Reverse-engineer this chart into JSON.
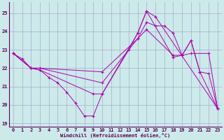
{
  "bg_color": "#cceaea",
  "grid_color": "#aaaacc",
  "line_color": "#aa00aa",
  "xlim": [
    -0.5,
    23.5
  ],
  "ylim": [
    18.8,
    25.6
  ],
  "yticks": [
    19,
    20,
    21,
    22,
    23,
    24,
    25
  ],
  "xticks": [
    0,
    1,
    2,
    3,
    4,
    5,
    6,
    7,
    8,
    9,
    10,
    11,
    12,
    13,
    14,
    15,
    16,
    17,
    18,
    19,
    20,
    21,
    22,
    23
  ],
  "xlabel": "Windchill (Refroidissement éolien,°C)",
  "lines": [
    {
      "x": [
        0,
        1,
        2,
        3,
        4,
        5,
        6,
        7,
        8,
        9,
        10,
        14,
        15,
        16,
        23
      ],
      "y": [
        22.8,
        22.5,
        22.0,
        21.9,
        21.5,
        21.2,
        20.7,
        20.1,
        19.4,
        19.4,
        20.6,
        23.9,
        25.1,
        24.8,
        19.8
      ]
    },
    {
      "x": [
        0,
        2,
        3,
        9,
        10,
        13,
        14,
        15,
        18,
        20,
        22,
        23
      ],
      "y": [
        22.8,
        22.0,
        21.9,
        20.6,
        20.6,
        23.0,
        23.9,
        25.1,
        22.6,
        22.8,
        22.8,
        19.8
      ]
    },
    {
      "x": [
        0,
        2,
        3,
        10,
        14,
        15,
        18,
        19,
        20,
        21,
        23
      ],
      "y": [
        22.8,
        22.0,
        22.0,
        21.2,
        23.6,
        24.1,
        22.7,
        22.7,
        23.5,
        21.8,
        19.8
      ]
    },
    {
      "x": [
        0,
        2,
        3,
        10,
        14,
        15,
        16,
        17,
        18,
        19,
        20,
        21,
        22,
        23
      ],
      "y": [
        22.8,
        22.0,
        22.0,
        21.8,
        23.6,
        24.5,
        24.3,
        24.3,
        23.9,
        22.7,
        23.5,
        21.8,
        21.7,
        19.8
      ]
    }
  ]
}
